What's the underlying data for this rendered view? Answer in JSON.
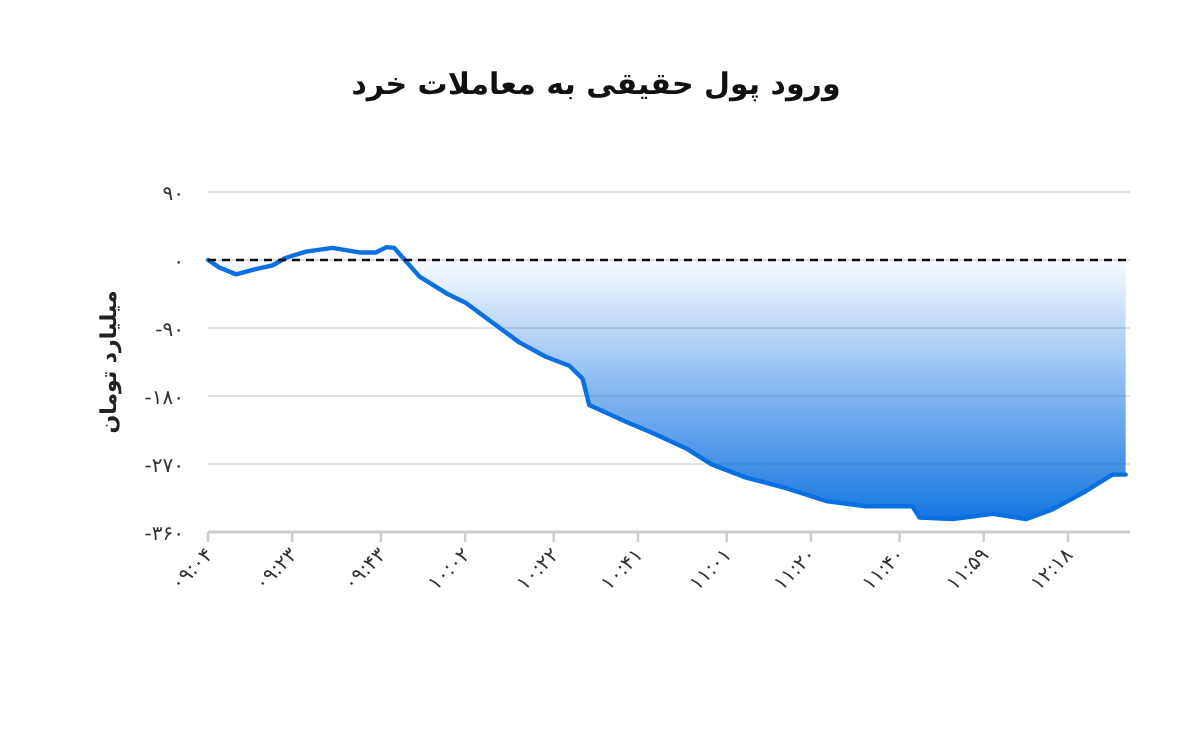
{
  "chart_data": {
    "type": "area",
    "title": "ورود پول حقیقی به معاملات خرد",
    "ylabel": "میلیارد تومان",
    "x": [
      9.067,
      9.11,
      9.172,
      9.235,
      9.31,
      9.36,
      9.435,
      9.535,
      9.635,
      9.698,
      9.737,
      9.767,
      9.812,
      9.862,
      9.962,
      10.037,
      10.137,
      10.237,
      10.337,
      10.425,
      10.475,
      10.5,
      10.638,
      10.738,
      10.863,
      10.963,
      11.09,
      11.24,
      11.39,
      11.54,
      11.715,
      11.742,
      11.867,
      12.017,
      12.142,
      12.242,
      12.367,
      12.467,
      12.517
    ],
    "series": [
      {
        "color": "#0a6fe0",
        "values": [
          0,
          -10,
          -19,
          -13,
          -7,
          3,
          11,
          16,
          10,
          10,
          17,
          16,
          -2,
          -22,
          -44,
          -57,
          -83,
          -109,
          -128,
          -140,
          -157,
          -192,
          -214,
          -229,
          -249,
          -271,
          -288,
          -302,
          -319,
          -326,
          -326,
          -341,
          -343,
          -336,
          -343,
          -330,
          -306,
          -284,
          -284
        ]
      }
    ],
    "xlim": [
      9.0667,
      12.5333
    ],
    "xticks": [
      {
        "value": 9.0667,
        "label": "۰۹:۰۴"
      },
      {
        "value": 9.3833,
        "label": "۰۹:۲۳"
      },
      {
        "value": 9.7167,
        "label": "۰۹:۴۳"
      },
      {
        "value": 10.0333,
        "label": "۱۰:۰۲"
      },
      {
        "value": 10.3667,
        "label": "۱۰:۲۲"
      },
      {
        "value": 10.6833,
        "label": "۱۰:۴۱"
      },
      {
        "value": 11.0167,
        "label": "۱۱:۰۱"
      },
      {
        "value": 11.3333,
        "label": "۱۱:۲۰"
      },
      {
        "value": 11.6667,
        "label": "۱۱:۴۰"
      },
      {
        "value": 11.9833,
        "label": "۱۱:۵۹"
      },
      {
        "value": 12.3,
        "label": "۱۲:۱۸"
      }
    ],
    "ylim": [
      -360,
      90
    ],
    "yticks": [
      {
        "value": 90,
        "label": "۹۰"
      },
      {
        "value": 0,
        "label": "۰"
      },
      {
        "value": -90,
        "label": "-۹۰"
      },
      {
        "value": -180,
        "label": "-۱۸۰"
      },
      {
        "value": -270,
        "label": "-۲۷۰"
      },
      {
        "value": -360,
        "label": "-۳۶۰"
      }
    ],
    "ref_lines": [
      {
        "axis": "y",
        "value": 0,
        "color": "#111111",
        "line_style": "dashed"
      }
    ],
    "grid": "y"
  }
}
